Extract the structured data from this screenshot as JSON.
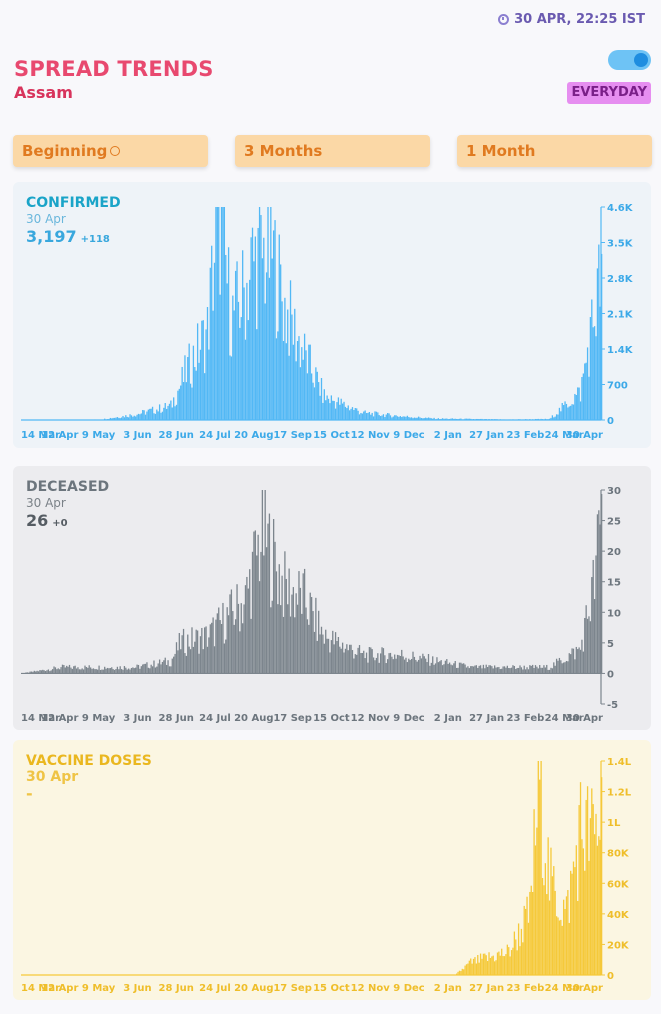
{
  "header": {
    "timestamp": "30 APR, 22:25 IST",
    "title": "SPREAD TRENDS",
    "region": "Assam",
    "mode_badge": "EVERYDAY",
    "toggle_on": true
  },
  "ranges": [
    "Beginning",
    "3 Months",
    "1 Month"
  ],
  "x_tick_labels": [
    "14 Mar",
    "12 Apr",
    "9 May",
    "3 Jun",
    "28 Jun",
    "24 Jul",
    "20 Aug",
    "17 Sep",
    "15 Oct",
    "12 Nov",
    "9 Dec",
    "2 Jan",
    "27 Jan",
    "23 Feb",
    "24 Mar",
    "30 Apr"
  ],
  "colors": {
    "confirmed": "#42b1f4",
    "confirmed_bg": "#eef3f8",
    "confirmed_text": "#1a9fd0",
    "deceased": "#6c757d",
    "deceased_bg": "#ececef",
    "deceased_text": "#555c63",
    "vaccine": "#f5c93a",
    "vaccine_bg": "#fbf6e2",
    "vaccine_text": "#e8b21a"
  },
  "panels": {
    "confirmed": {
      "label": "CONFIRMED",
      "date": "30 Apr",
      "value": "3,197",
      "delta": "+118"
    },
    "deceased": {
      "label": "DECEASED",
      "date": "30 Apr",
      "value": "26",
      "delta": "+0"
    },
    "vaccine": {
      "label": "VACCINE DOSES",
      "date": "30 Apr",
      "value": "-",
      "delta": ""
    }
  },
  "chart_data": [
    {
      "type": "bar",
      "name": "CONFIRMED",
      "y_ticks": [
        "4.6K",
        "3.5K",
        "2.8K",
        "2.1K",
        "1.4K",
        "700",
        "0"
      ],
      "ylim": [
        0,
        4600
      ],
      "x_range": [
        "14 Mar",
        "30 Apr"
      ],
      "approx_profile": [
        {
          "x": "14 Mar",
          "y": 0
        },
        {
          "x": "12 Apr",
          "y": 0
        },
        {
          "x": "9 May",
          "y": 10
        },
        {
          "x": "3 Jun",
          "y": 120
        },
        {
          "x": "28 Jun",
          "y": 300
        },
        {
          "x": "10 Jul",
          "y": 1100
        },
        {
          "x": "24 Jul",
          "y": 1900
        },
        {
          "x": "1 Aug",
          "y": 4600
        },
        {
          "x": "10 Aug",
          "y": 2200
        },
        {
          "x": "20 Aug",
          "y": 2800
        },
        {
          "x": "25 Aug",
          "y": 3400
        },
        {
          "x": "8 Sep",
          "y": 3600
        },
        {
          "x": "17 Sep",
          "y": 2400
        },
        {
          "x": "1 Oct",
          "y": 1400
        },
        {
          "x": "15 Oct",
          "y": 500
        },
        {
          "x": "12 Nov",
          "y": 150
        },
        {
          "x": "9 Dec",
          "y": 80
        },
        {
          "x": "2 Jan",
          "y": 30
        },
        {
          "x": "23 Feb",
          "y": 10
        },
        {
          "x": "24 Mar",
          "y": 20
        },
        {
          "x": "15 Apr",
          "y": 600
        },
        {
          "x": "25 Apr",
          "y": 2300
        },
        {
          "x": "30 Apr",
          "y": 3197
        }
      ]
    },
    {
      "type": "bar",
      "name": "DECEASED",
      "y_ticks": [
        "30",
        "25",
        "20",
        "15",
        "10",
        "5",
        "0",
        "-5"
      ],
      "ylim": [
        -5,
        30
      ],
      "x_range": [
        "14 Mar",
        "30 Apr"
      ],
      "approx_profile": [
        {
          "x": "14 Mar",
          "y": 0
        },
        {
          "x": "12 Apr",
          "y": 1
        },
        {
          "x": "9 May",
          "y": 1
        },
        {
          "x": "3 Jun",
          "y": 1
        },
        {
          "x": "28 Jun",
          "y": 2
        },
        {
          "x": "5 Jul",
          "y": 5
        },
        {
          "x": "24 Jul",
          "y": 6
        },
        {
          "x": "20 Aug",
          "y": 12
        },
        {
          "x": "1 Sep",
          "y": 23
        },
        {
          "x": "17 Sep",
          "y": 14
        },
        {
          "x": "1 Oct",
          "y": 12
        },
        {
          "x": "15 Oct",
          "y": 6
        },
        {
          "x": "12 Nov",
          "y": 3
        },
        {
          "x": "9 Dec",
          "y": 3
        },
        {
          "x": "2 Jan",
          "y": 2
        },
        {
          "x": "27 Jan",
          "y": 1
        },
        {
          "x": "24 Mar",
          "y": 1
        },
        {
          "x": "15 Apr",
          "y": 4
        },
        {
          "x": "25 Apr",
          "y": 15
        },
        {
          "x": "30 Apr",
          "y": 26
        }
      ]
    },
    {
      "type": "bar",
      "name": "VACCINE DOSES",
      "y_ticks": [
        "1.4L",
        "1.2L",
        "1L",
        "80K",
        "60K",
        "40K",
        "20K",
        "0"
      ],
      "ylim": [
        0,
        140000
      ],
      "x_range": [
        "14 Mar",
        "30 Apr"
      ],
      "approx_profile": [
        {
          "x": "14 Mar",
          "y": 0
        },
        {
          "x": "16 Jan",
          "y": 0
        },
        {
          "x": "20 Jan",
          "y": 3000
        },
        {
          "x": "27 Jan",
          "y": 8000
        },
        {
          "x": "23 Feb",
          "y": 15000
        },
        {
          "x": "10 Mar",
          "y": 40000
        },
        {
          "x": "17 Mar",
          "y": 131000
        },
        {
          "x": "24 Mar",
          "y": 60000
        },
        {
          "x": "5 Apr",
          "y": 40000
        },
        {
          "x": "15 Apr",
          "y": 95000
        },
        {
          "x": "25 Apr",
          "y": 90000
        },
        {
          "x": "30 Apr",
          "y": 107000
        }
      ]
    }
  ]
}
